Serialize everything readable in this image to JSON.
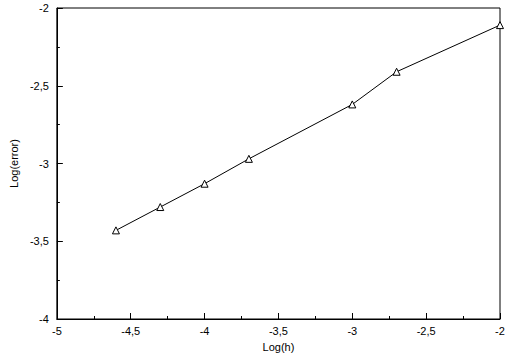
{
  "chart_data": {
    "type": "line",
    "x_label": "Log(h)",
    "y_label": "Log(error)",
    "x": [
      -4.6,
      -4.3,
      -4.0,
      -3.7,
      -3.0,
      -2.7,
      -2.0
    ],
    "values": [
      -3.43,
      -3.28,
      -3.13,
      -2.97,
      -2.62,
      -2.41,
      -2.11
    ],
    "color": "#000000",
    "marker": "triangle",
    "line_style": "solid",
    "xlim": [
      -5,
      -2
    ],
    "xticks": [
      -5,
      {
        "value": -4.5,
        "label": "-4,5"
      },
      -4,
      {
        "value": -3.5,
        "label": "-3,5"
      },
      -3,
      {
        "value": -2.5,
        "label": "-2,5"
      },
      -2
    ],
    "ylim": [
      -4,
      -2
    ],
    "yticks": [
      -4,
      {
        "value": -3.5,
        "label": "-3,5"
      },
      -3,
      {
        "value": -2.5,
        "label": "-2,5"
      },
      -2
    ],
    "grid": false
  }
}
